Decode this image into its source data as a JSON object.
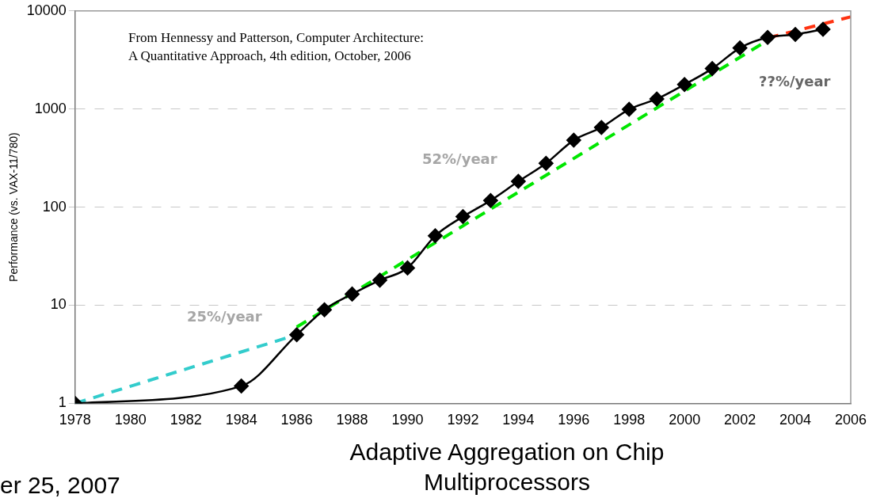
{
  "chart_data": {
    "type": "line",
    "ylabel": "Performance (vs. VAX-11/780)",
    "log": "y",
    "grid": "y",
    "legend": false,
    "marker": "diamond",
    "xlim": [
      1978,
      2006
    ],
    "xticks": [
      1978,
      1980,
      1982,
      1984,
      1986,
      1988,
      1990,
      1992,
      1994,
      1996,
      1998,
      2000,
      2002,
      2004,
      2006
    ],
    "ylim": [
      1,
      10000
    ],
    "yticks": [
      1,
      10,
      100,
      1000,
      10000
    ],
    "x": [
      1978,
      1984,
      1986,
      1987,
      1988,
      1989,
      1990,
      1991,
      1992,
      1993,
      1994,
      1995,
      1996,
      1997,
      1998,
      1999,
      2000,
      2001,
      2002,
      2003,
      2004,
      2005
    ],
    "series": [
      {
        "color": "#000000",
        "values": [
          1,
          1.5,
          5,
          9,
          13,
          18,
          24,
          51,
          80,
          117,
          183,
          280,
          481,
          649,
          993,
          1267,
          1779,
          2584,
          4195,
          5364,
          5764,
          6505
        ]
      },
      {
        "type": "line",
        "color": "#33cccc",
        "x": [
          1978,
          1986
        ],
        "values": [
          1,
          5
        ],
        "line_style": "dashed",
        "marker": "none"
      },
      {
        "type": "line",
        "color": "#00e600",
        "x": [
          1986,
          2003
        ],
        "values": [
          6,
          5000
        ],
        "line_style": "dashed",
        "marker": "none"
      },
      {
        "type": "line",
        "color": "#ff3311",
        "x": [
          2003,
          2006
        ],
        "values": [
          5300,
          8700
        ],
        "line_style": "dashed",
        "marker": "none"
      }
    ],
    "annotations": [
      "From Hennessy and Patterson, Computer Architecture: A Quantitative Approach, 4th edition, October, 2006",
      "25%/year",
      "52%/year",
      "??%/year",
      "er 25, 2007",
      "Adaptive Aggregation on Chip Multiprocessors"
    ]
  }
}
